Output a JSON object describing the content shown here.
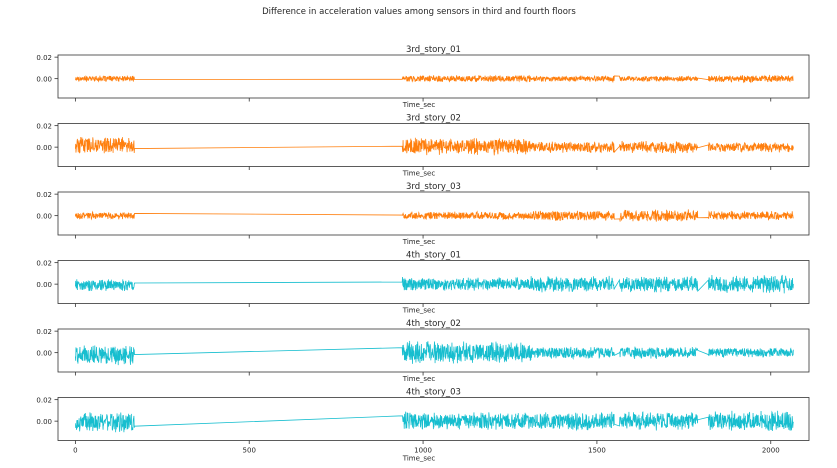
{
  "figure_title": "Difference in acceleration values among sensors in third and fourth floors",
  "chart_data": [
    {
      "type": "line",
      "title": "3rd_story_01",
      "xlabel": "Time_sec",
      "ylabel": "",
      "color": "#ff7f0e",
      "xlim": [
        -50,
        2110
      ],
      "ylim": [
        -0.018,
        0.022
      ],
      "yticks": [
        0.0,
        0.02
      ],
      "ytick_labels": [
        "0.00",
        "0.02"
      ],
      "show_xtick_labels": false,
      "segments": [
        {
          "x_start": 0,
          "x_end": 170,
          "amplitude": 0.003,
          "offset": 0.0
        },
        {
          "x_start": 940,
          "x_end": 1310,
          "amplitude": 0.0035,
          "offset": 0.0
        },
        {
          "x_start": 1310,
          "x_end": 1550,
          "amplitude": 0.003,
          "offset": 0.0
        },
        {
          "x_start": 1565,
          "x_end": 1790,
          "amplitude": 0.0028,
          "offset": 0.0
        },
        {
          "x_start": 1820,
          "x_end": 2065,
          "amplitude": 0.0035,
          "offset": 0.0
        }
      ]
    },
    {
      "type": "line",
      "title": "3rd_story_02",
      "xlabel": "Time_sec",
      "ylabel": "",
      "color": "#ff7f0e",
      "xlim": [
        -50,
        2110
      ],
      "ylim": [
        -0.018,
        0.022
      ],
      "yticks": [
        0.0,
        0.02
      ],
      "ytick_labels": [
        "0.00",
        "0.02"
      ],
      "show_xtick_labels": false,
      "segments": [
        {
          "x_start": 0,
          "x_end": 170,
          "amplitude": 0.008,
          "offset": 0.002
        },
        {
          "x_start": 940,
          "x_end": 1310,
          "amplitude": 0.009,
          "offset": 0.001
        },
        {
          "x_start": 1310,
          "x_end": 1550,
          "amplitude": 0.006,
          "offset": 0.0
        },
        {
          "x_start": 1565,
          "x_end": 1790,
          "amplitude": 0.006,
          "offset": 0.0
        },
        {
          "x_start": 1820,
          "x_end": 2065,
          "amplitude": 0.005,
          "offset": 0.0
        }
      ]
    },
    {
      "type": "line",
      "title": "3rd_story_03",
      "xlabel": "Time_sec",
      "ylabel": "",
      "color": "#ff7f0e",
      "xlim": [
        -50,
        2110
      ],
      "ylim": [
        -0.018,
        0.022
      ],
      "yticks": [
        0.0,
        0.02
      ],
      "ytick_labels": [
        "0.00",
        "0.02"
      ],
      "show_xtick_labels": false,
      "segments": [
        {
          "x_start": 0,
          "x_end": 170,
          "amplitude": 0.0035,
          "offset": 0.0
        },
        {
          "x_start": 940,
          "x_end": 1310,
          "amplitude": 0.004,
          "offset": 0.0
        },
        {
          "x_start": 1310,
          "x_end": 1550,
          "amplitude": 0.005,
          "offset": 0.0
        },
        {
          "x_start": 1565,
          "x_end": 1790,
          "amplitude": 0.006,
          "offset": 0.0
        },
        {
          "x_start": 1820,
          "x_end": 2065,
          "amplitude": 0.0045,
          "offset": 0.0
        }
      ]
    },
    {
      "type": "line",
      "title": "4th_story_01",
      "xlabel": "Time_sec",
      "ylabel": "",
      "color": "#17becf",
      "xlim": [
        -50,
        2110
      ],
      "ylim": [
        -0.018,
        0.022
      ],
      "yticks": [
        0.0,
        0.02
      ],
      "ytick_labels": [
        "0.00",
        "0.02"
      ],
      "show_xtick_labels": false,
      "segments": [
        {
          "x_start": 0,
          "x_end": 170,
          "amplitude": 0.006,
          "offset": -0.001
        },
        {
          "x_start": 940,
          "x_end": 1310,
          "amplitude": 0.007,
          "offset": 0.0
        },
        {
          "x_start": 1310,
          "x_end": 1550,
          "amplitude": 0.008,
          "offset": 0.0
        },
        {
          "x_start": 1565,
          "x_end": 1790,
          "amplitude": 0.008,
          "offset": 0.0
        },
        {
          "x_start": 1820,
          "x_end": 2065,
          "amplitude": 0.009,
          "offset": 0.0
        }
      ]
    },
    {
      "type": "line",
      "title": "4th_story_02",
      "xlabel": "Time_sec",
      "ylabel": "",
      "color": "#17becf",
      "xlim": [
        -50,
        2110
      ],
      "ylim": [
        -0.018,
        0.022
      ],
      "yticks": [
        0.0,
        0.02
      ],
      "ytick_labels": [
        "0.00",
        "0.02"
      ],
      "show_xtick_labels": false,
      "segments": [
        {
          "x_start": 0,
          "x_end": 170,
          "amplitude": 0.01,
          "offset": -0.002
        },
        {
          "x_start": 940,
          "x_end": 1310,
          "amplitude": 0.011,
          "offset": 0.0
        },
        {
          "x_start": 1310,
          "x_end": 1550,
          "amplitude": 0.006,
          "offset": 0.0
        },
        {
          "x_start": 1565,
          "x_end": 1790,
          "amplitude": 0.006,
          "offset": 0.0
        },
        {
          "x_start": 1820,
          "x_end": 2065,
          "amplitude": 0.005,
          "offset": 0.0
        }
      ]
    },
    {
      "type": "line",
      "title": "4th_story_03",
      "xlabel": "Time_sec",
      "ylabel": "",
      "color": "#17becf",
      "xlim": [
        -50,
        2110
      ],
      "ylim": [
        -0.018,
        0.022
      ],
      "yticks": [
        0.0,
        0.02
      ],
      "ytick_labels": [
        "0.00",
        "0.02"
      ],
      "show_xtick_labels": true,
      "xticks": [
        0,
        500,
        1000,
        1500,
        2000
      ],
      "xtick_labels": [
        "0",
        "500",
        "1000",
        "1500",
        "2000"
      ],
      "segments": [
        {
          "x_start": 0,
          "x_end": 170,
          "amplitude": 0.01,
          "offset": -0.001
        },
        {
          "x_start": 940,
          "x_end": 1310,
          "amplitude": 0.009,
          "offset": 0.0
        },
        {
          "x_start": 1310,
          "x_end": 1550,
          "amplitude": 0.009,
          "offset": 0.0
        },
        {
          "x_start": 1565,
          "x_end": 1790,
          "amplitude": 0.009,
          "offset": 0.0
        },
        {
          "x_start": 1820,
          "x_end": 2065,
          "amplitude": 0.01,
          "offset": 0.0
        }
      ]
    }
  ]
}
